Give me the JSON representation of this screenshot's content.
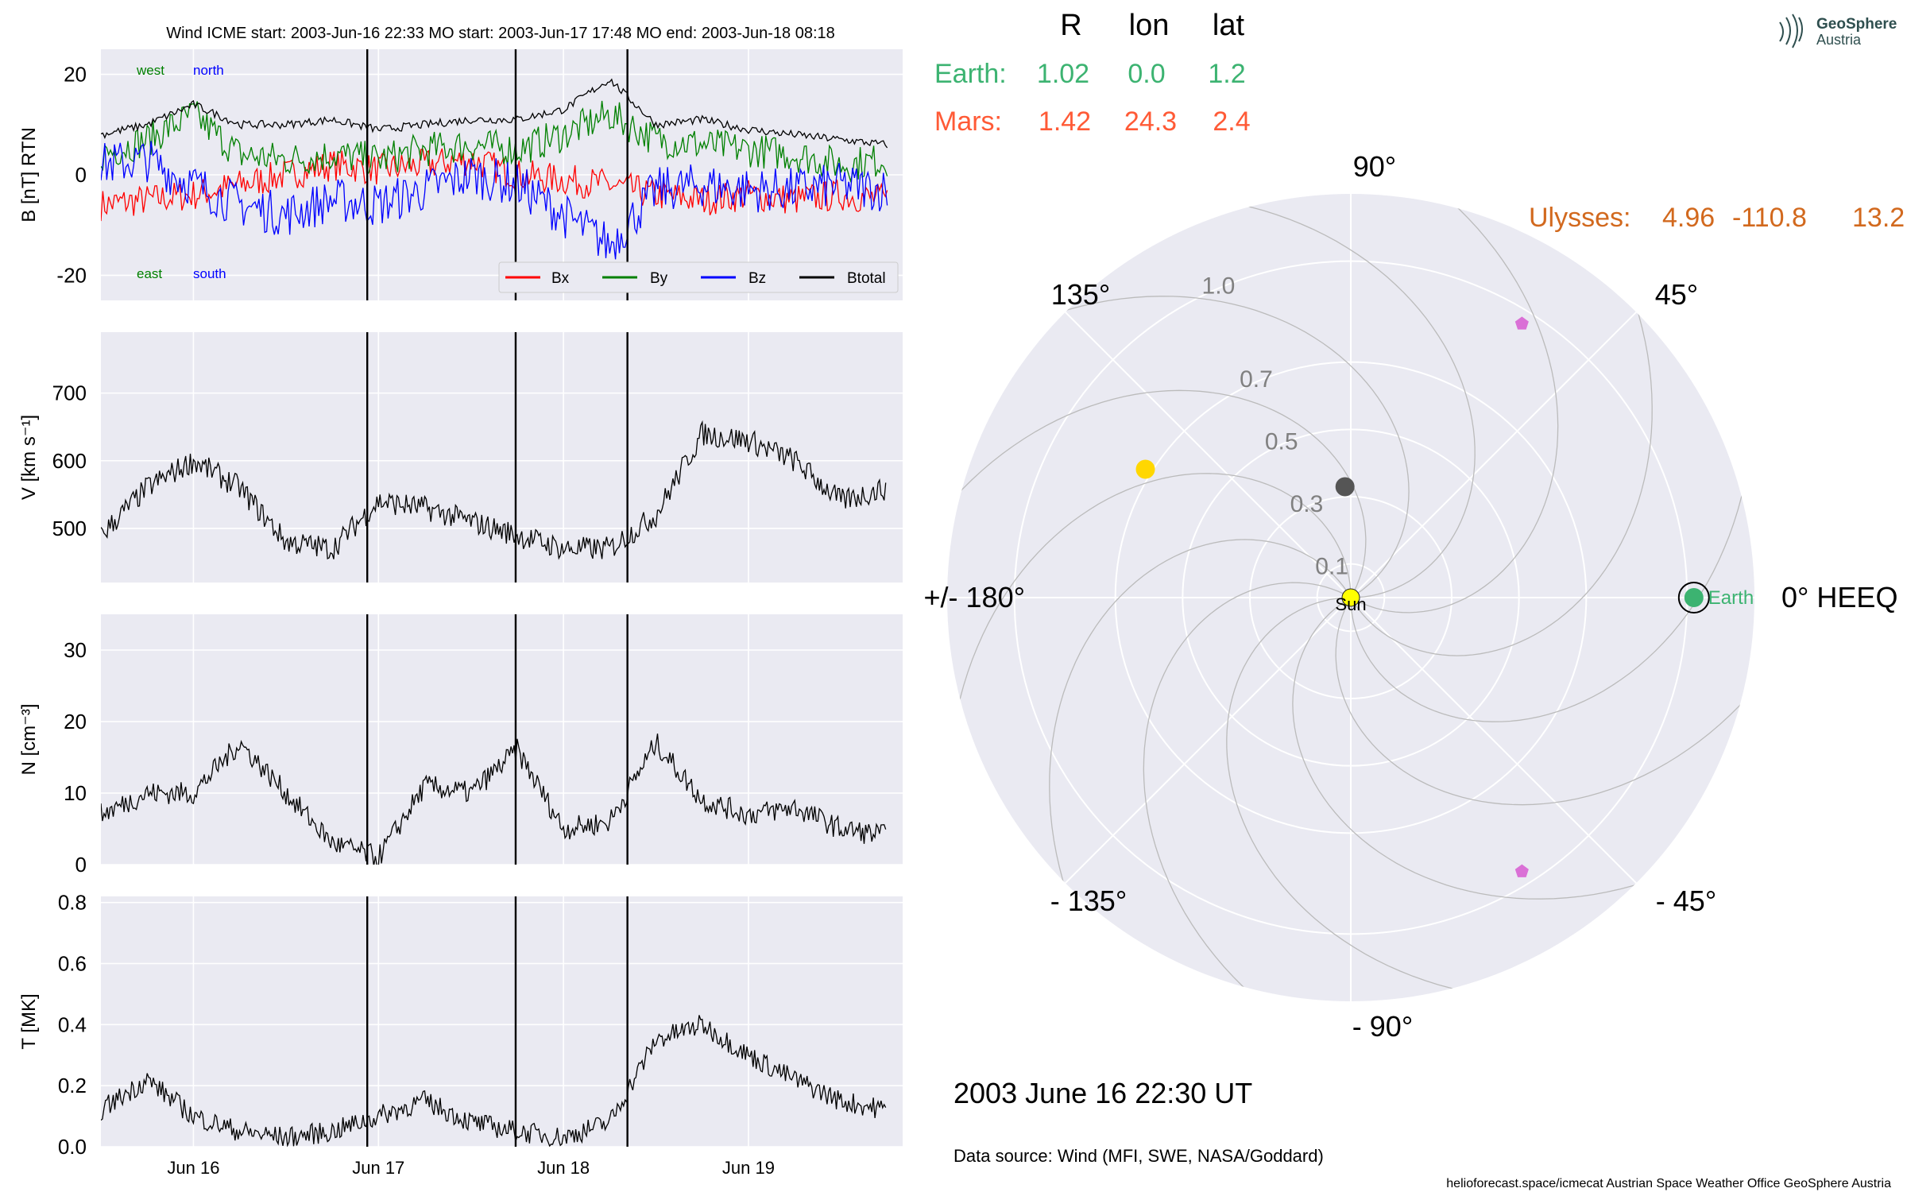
{
  "header": {
    "title": "Wind    ICME start: 2003-Jun-16 22:33   MO start: 2003-Jun-17 17:48   MO end: 2003-Jun-18 08:18"
  },
  "colors": {
    "panel_bg": "#eaeaf2",
    "grid": "#ffffff",
    "bx": "#ff0000",
    "by": "#008000",
    "bz": "#0000ff",
    "btot": "#000000",
    "earth": "#3cb371",
    "mars": "#ff5a36",
    "ulysses": "#d2691e",
    "sun": "#ffff00",
    "mercury": "#555555",
    "venus": "#ffd700",
    "stereo": "#da70d6",
    "text": "#000000",
    "ring_label": "#808080"
  },
  "logo": {
    "line1": "GeoSphere",
    "line2": "Austria"
  },
  "table": {
    "headers": [
      "R",
      "lon",
      "lat"
    ],
    "rows": [
      {
        "name": "Earth:",
        "R": "1.02",
        "lon": "0.0",
        "lat": "1.2",
        "color_key": "earth"
      },
      {
        "name": "Mars:",
        "R": "1.42",
        "lon": "24.3",
        "lat": "2.4",
        "color_key": "mars"
      }
    ],
    "ulysses": {
      "name": "Ulysses:",
      "R": "4.96",
      "lon": "-110.8",
      "lat": "13.2"
    }
  },
  "polar": {
    "angle_labels": {
      "a0": "0° HEEQ",
      "a45": "45°",
      "a90": "90°",
      "a135": "135°",
      "a180": "+/- 180°",
      "am135": "- 135°",
      "am90": "- 90°",
      "am45": "- 45°"
    },
    "ring_labels": [
      "0.1",
      "0.3",
      "0.5",
      "0.7",
      "1.0"
    ],
    "ring_values": [
      0.1,
      0.3,
      0.5,
      0.7,
      1.0
    ],
    "rmax": 1.2,
    "earth_label": "Earth",
    "sun_label": "Sun",
    "bodies": [
      {
        "name": "Sun",
        "r": 0.0,
        "lon": 0.0,
        "color_key": "sun"
      },
      {
        "name": "Earth",
        "r": 1.02,
        "lon": 0.0,
        "color_key": "earth"
      },
      {
        "name": "Mercury",
        "r": 0.33,
        "lon": 93.0,
        "color_key": "mercury"
      },
      {
        "name": "Venus",
        "r": 0.72,
        "lon": 148.0,
        "color_key": "venus"
      },
      {
        "name": "STEREO-A",
        "r": 0.96,
        "lon": 58.0,
        "color_key": "stereo"
      },
      {
        "name": "STEREO-B",
        "r": 0.96,
        "lon": -58.0,
        "color_key": "stereo"
      }
    ],
    "date_text": "2003 June 16  22:30 UT",
    "source_text": "Data source: Wind (MFI, SWE, NASA/Goddard)"
  },
  "footer": {
    "credits": "helioforecast.space/icmecat   Austrian Space Weather Office   GeoSphere Austria"
  },
  "chart_data": [
    {
      "type": "line",
      "panel": "B",
      "title": "Wind    ICME start: 2003-Jun-16 22:33   MO start: 2003-Jun-17 17:48   MO end: 2003-Jun-18 08:18",
      "ylabel": "B [nT] RTN",
      "ylim": [
        -25,
        25
      ],
      "yticks": [
        -20,
        0,
        20
      ],
      "xlim": [
        "2003-06-15 12:00",
        "2003-06-19 20:00"
      ],
      "xtick_labels": [
        "Jun 16",
        "Jun 17",
        "Jun 18",
        "Jun 19"
      ],
      "vlines": [
        "2003-06-16 22:33",
        "2003-06-17 17:48",
        "2003-06-18 08:18"
      ],
      "annotations": {
        "west": "west",
        "north": "north",
        "east": "east",
        "south": "south"
      },
      "legend": [
        "Bx",
        "By",
        "Bz",
        "Btotal"
      ],
      "legend_position": "lower-right",
      "series": [
        {
          "name": "Bx",
          "x_hours": [
            0,
            6,
            12,
            18,
            24,
            30,
            36,
            42,
            48,
            54,
            60,
            66,
            72,
            78,
            84,
            90,
            96,
            102
          ],
          "values": [
            -6,
            -5,
            -4,
            -2,
            0,
            2,
            1,
            2,
            3,
            0,
            -1,
            -2,
            -4,
            -5,
            -4,
            -5,
            -4,
            -5
          ]
        },
        {
          "name": "By",
          "x_hours": [
            0,
            6,
            12,
            18,
            24,
            30,
            36,
            42,
            48,
            54,
            60,
            66,
            72,
            78,
            84,
            90,
            96,
            102
          ],
          "values": [
            4,
            7,
            12,
            4,
            3,
            4,
            3,
            5,
            6,
            5,
            8,
            12,
            7,
            6,
            5,
            4,
            2,
            3
          ]
        },
        {
          "name": "Bz",
          "x_hours": [
            0,
            6,
            12,
            18,
            24,
            30,
            36,
            42,
            48,
            54,
            60,
            66,
            72,
            78,
            84,
            90,
            96,
            102
          ],
          "values": [
            2,
            3,
            -2,
            -6,
            -8,
            -5,
            -6,
            -3,
            0,
            -2,
            -8,
            -14,
            -3,
            -2,
            -3,
            -3,
            -2,
            -3
          ]
        },
        {
          "name": "Btotal",
          "x_hours": [
            0,
            6,
            12,
            18,
            24,
            30,
            36,
            42,
            48,
            54,
            60,
            66,
            72,
            78,
            84,
            90,
            96,
            102
          ],
          "values": [
            8,
            10,
            14,
            10,
            10,
            11,
            9,
            10,
            11,
            11,
            13,
            19,
            10,
            11,
            9,
            8,
            7,
            6
          ]
        }
      ]
    },
    {
      "type": "line",
      "panel": "V",
      "ylabel": "V [km s⁻¹]",
      "ylim": [
        420,
        790
      ],
      "yticks": [
        500,
        600,
        700
      ],
      "x_hours": [
        0,
        6,
        12,
        18,
        24,
        30,
        36,
        42,
        48,
        54,
        60,
        66,
        72,
        78,
        84,
        90,
        96,
        102
      ],
      "series": [
        {
          "name": "V",
          "values": [
            490,
            560,
            600,
            560,
            480,
            470,
            540,
            530,
            510,
            490,
            470,
            470,
            520,
            640,
            630,
            600,
            540,
            560
          ]
        }
      ]
    },
    {
      "type": "line",
      "panel": "N",
      "ylabel": "N [cm⁻³]",
      "ylim": [
        0,
        35
      ],
      "yticks": [
        0,
        10,
        20,
        30
      ],
      "x_hours": [
        0,
        6,
        12,
        18,
        24,
        30,
        36,
        42,
        48,
        54,
        60,
        66,
        72,
        78,
        84,
        90,
        96,
        102
      ],
      "series": [
        {
          "name": "N",
          "values": [
            7,
            10,
            10,
            17,
            10,
            3,
            1,
            11,
            10,
            16,
            5,
            6,
            17,
            9,
            7,
            8,
            5,
            4
          ]
        }
      ]
    },
    {
      "type": "line",
      "panel": "T",
      "ylabel": "T [MK]",
      "ylim": [
        0,
        0.82
      ],
      "yticks": [
        0.0,
        0.2,
        0.4,
        0.6,
        0.8
      ],
      "x_hours": [
        0,
        6,
        12,
        18,
        24,
        30,
        36,
        42,
        48,
        54,
        60,
        66,
        72,
        78,
        84,
        90,
        96,
        102
      ],
      "series": [
        {
          "name": "T",
          "values": [
            0.12,
            0.22,
            0.1,
            0.05,
            0.03,
            0.05,
            0.1,
            0.15,
            0.08,
            0.05,
            0.03,
            0.08,
            0.35,
            0.4,
            0.3,
            0.22,
            0.15,
            0.12
          ]
        }
      ]
    }
  ]
}
